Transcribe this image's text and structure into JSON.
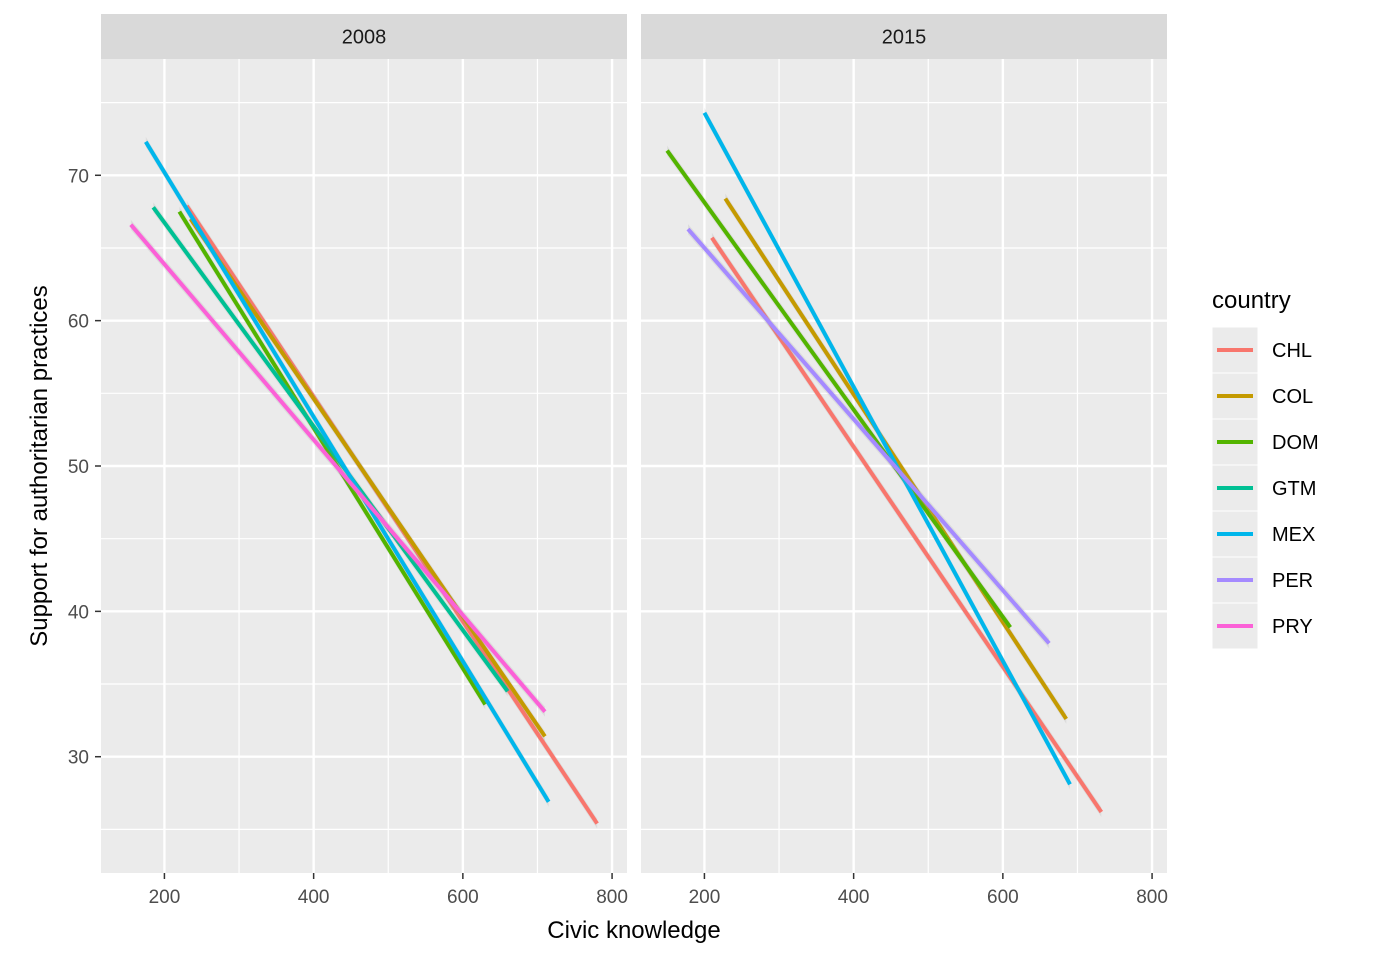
{
  "chart_data": {
    "type": "line",
    "facet_variable": "year",
    "xlabel": "Civic knowledge",
    "ylabel": "Support for authoritarian practices",
    "xlim": [
      115,
      820
    ],
    "ylim": [
      22,
      78
    ],
    "x_ticks": [
      200,
      400,
      600,
      800
    ],
    "y_ticks": [
      30,
      40,
      50,
      60,
      70
    ],
    "grid": true,
    "legend": {
      "title": "country",
      "position": "right",
      "entries": [
        {
          "key": "CHL",
          "color": "#F8766D"
        },
        {
          "key": "COL",
          "color": "#C49A00"
        },
        {
          "key": "DOM",
          "color": "#53B400"
        },
        {
          "key": "GTM",
          "color": "#00C094"
        },
        {
          "key": "MEX",
          "color": "#00B6EB"
        },
        {
          "key": "PER",
          "color": "#A58AFF"
        },
        {
          "key": "PRY",
          "color": "#FB61D7"
        }
      ]
    },
    "panels": [
      {
        "label": "2008",
        "series": [
          {
            "name": "CHL",
            "x": [
              230,
              780
            ],
            "y": [
              67.9,
              25.4
            ]
          },
          {
            "name": "COL",
            "x": [
              235,
              710
            ],
            "y": [
              67.0,
              31.4
            ]
          },
          {
            "name": "DOM",
            "x": [
              220,
              630
            ],
            "y": [
              67.5,
              33.6
            ]
          },
          {
            "name": "GTM",
            "x": [
              185,
              660
            ],
            "y": [
              67.8,
              34.5
            ]
          },
          {
            "name": "MEX",
            "x": [
              175,
              715
            ],
            "y": [
              72.3,
              26.9
            ]
          },
          {
            "name": "PRY",
            "x": [
              155,
              710
            ],
            "y": [
              66.6,
              33.1
            ]
          }
        ]
      },
      {
        "label": "2015",
        "series": [
          {
            "name": "CHL",
            "x": [
              210,
              732
            ],
            "y": [
              65.7,
              26.2
            ]
          },
          {
            "name": "COL",
            "x": [
              228,
              685
            ],
            "y": [
              68.4,
              32.6
            ]
          },
          {
            "name": "DOM",
            "x": [
              150,
              610
            ],
            "y": [
              71.7,
              38.9
            ]
          },
          {
            "name": "MEX",
            "x": [
              200,
              690
            ],
            "y": [
              74.3,
              28.1
            ]
          },
          {
            "name": "PER",
            "x": [
              178,
              662
            ],
            "y": [
              66.3,
              37.8
            ]
          }
        ]
      }
    ]
  }
}
